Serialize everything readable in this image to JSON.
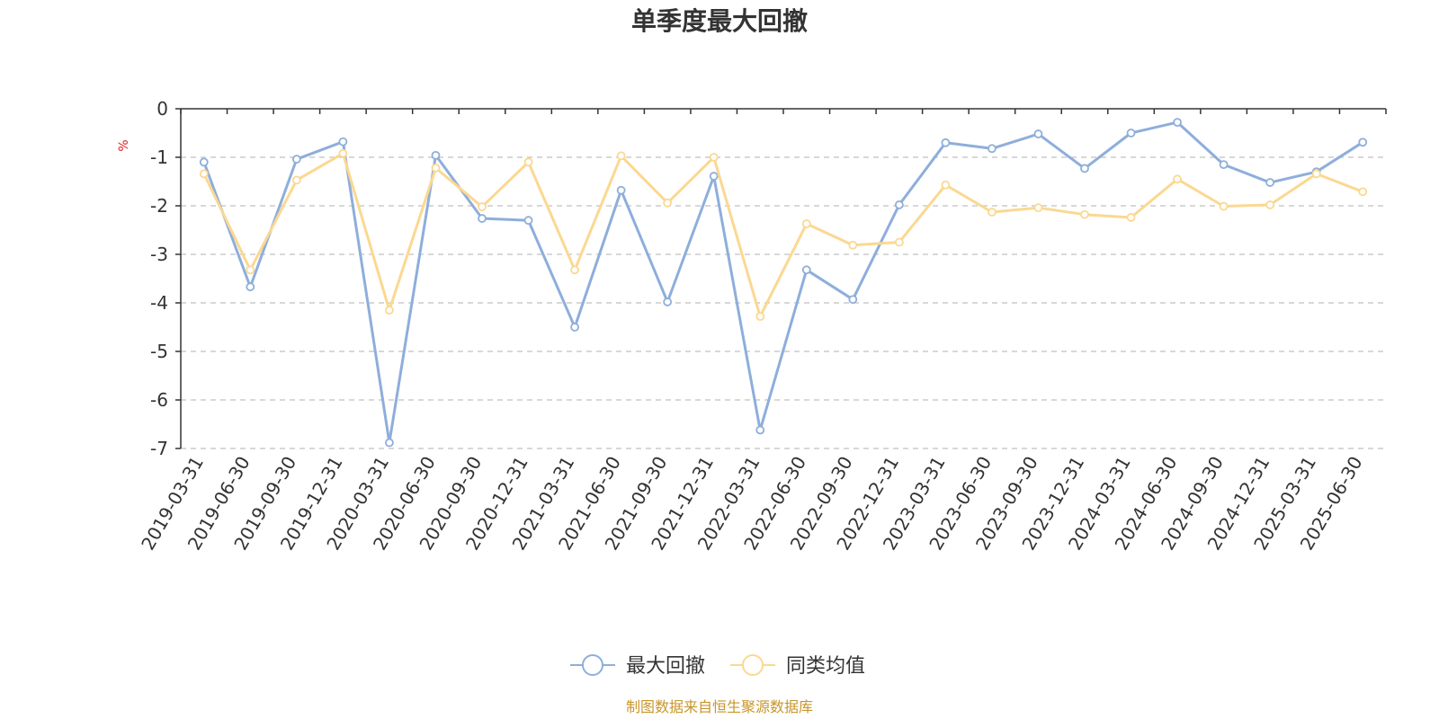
{
  "chart_data": {
    "type": "line",
    "title": "单季度最大回撤",
    "ylabel": "%",
    "ylim": [
      -7,
      0
    ],
    "yticks": [
      0,
      -1,
      -2,
      -3,
      -4,
      -5,
      -6,
      -7
    ],
    "grid": true,
    "legend_position": "bottom-center",
    "categories": [
      "2019-03-31",
      "2019-06-30",
      "2019-09-30",
      "2019-12-31",
      "2020-03-31",
      "2020-06-30",
      "2020-09-30",
      "2020-12-31",
      "2021-03-31",
      "2021-06-30",
      "2021-09-30",
      "2021-12-31",
      "2022-03-31",
      "2022-06-30",
      "2022-09-30",
      "2022-12-31",
      "2023-03-31",
      "2023-06-30",
      "2023-09-30",
      "2023-12-31",
      "2024-03-31",
      "2024-06-30",
      "2024-09-30",
      "2024-12-31",
      "2025-03-31",
      "2025-06-30"
    ],
    "series": [
      {
        "name": "最大回撤",
        "color": "#8eaedb",
        "values": [
          -1.1,
          -3.67,
          -1.04,
          -0.68,
          -6.88,
          -0.96,
          -2.26,
          -2.3,
          -4.5,
          -1.68,
          -3.98,
          -1.39,
          -6.62,
          -3.32,
          -3.93,
          -1.98,
          -0.7,
          -0.82,
          -0.52,
          -1.23,
          -0.5,
          -0.28,
          -1.15,
          -1.52,
          -1.3,
          -0.69
        ]
      },
      {
        "name": "同类均值",
        "color": "#fbd891",
        "values": [
          -1.34,
          -3.32,
          -1.47,
          -0.92,
          -4.15,
          -1.22,
          -2.02,
          -1.1,
          -3.32,
          -0.97,
          -1.94,
          -1.0,
          -4.28,
          -2.37,
          -2.81,
          -2.75,
          -1.57,
          -2.13,
          -2.04,
          -2.18,
          -2.24,
          -1.45,
          -2.01,
          -1.98,
          -1.34,
          -1.71
        ]
      }
    ]
  },
  "source_note": "制图数据来自恒生聚源数据库"
}
